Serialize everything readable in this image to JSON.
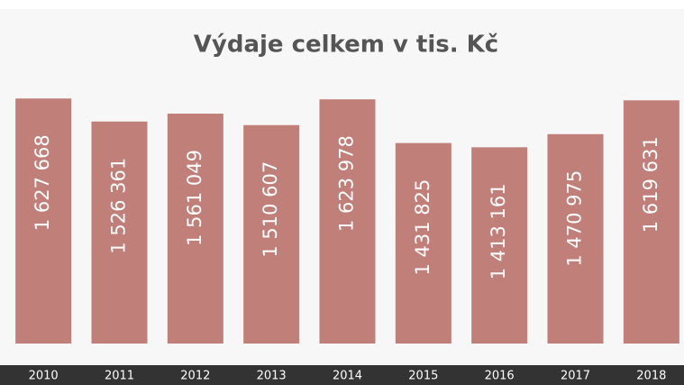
{
  "chart_data": {
    "type": "bar",
    "title": "Výdaje celkem v tis. Kč",
    "categories": [
      "2010",
      "2011",
      "2012",
      "2013",
      "2014",
      "2015",
      "2016",
      "2017",
      "2018"
    ],
    "values": [
      1627668,
      1526361,
      1561049,
      1510607,
      1623978,
      1431825,
      1413161,
      1470975,
      1619631
    ],
    "value_labels": [
      "1 627 668",
      "1 526 361",
      "1 561 049",
      "1 510 607",
      "1 623 978",
      "1 431 825",
      "1 413 161",
      "1 470 975",
      "1 619 631"
    ],
    "color": "#c17f79",
    "ylim": [
      550000,
      1700000
    ]
  }
}
